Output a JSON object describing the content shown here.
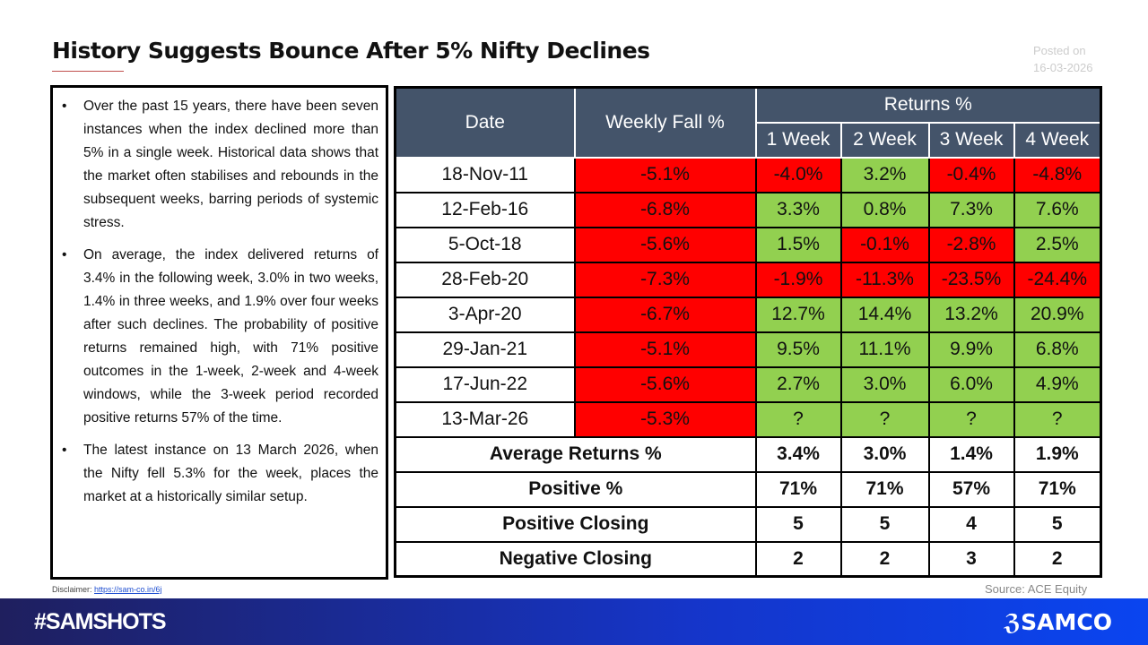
{
  "title": "History Suggests Bounce After 5% Nifty Declines",
  "posted": {
    "label": "Posted on",
    "date": "16-03-2026"
  },
  "bullets": [
    "Over the past 15 years, there have been seven instances when the index declined more than 5% in a single week. Historical data shows that the market often stabilises and rebounds in the subsequent weeks, barring periods of systemic stress.",
    "On average, the index delivered returns of 3.4% in the following week, 3.0% in two weeks, 1.4% in three weeks, and 1.9% over four weeks after such declines. The probability of positive returns remained high, with 71% positive outcomes in the 1-week, 2-week and 4-week windows, while the 3-week period recorded positive returns 57% of the time.",
    "The latest instance on 13 March 2026, when the Nifty fell 5.3% for the week, places the market at a historically similar setup."
  ],
  "table": {
    "headers": {
      "date": "Date",
      "fall": "Weekly Fall %",
      "returns": "Returns %",
      "weeks": [
        "1 Week",
        "2 Week",
        "3 Week",
        "4 Week"
      ]
    },
    "rows": [
      {
        "date": "18-Nov-11",
        "fall": "-5.1%",
        "r": [
          "-4.0%",
          "3.2%",
          "-0.4%",
          "-4.8%"
        ]
      },
      {
        "date": "12-Feb-16",
        "fall": "-6.8%",
        "r": [
          "3.3%",
          "0.8%",
          "7.3%",
          "7.6%"
        ]
      },
      {
        "date": "5-Oct-18",
        "fall": "-5.6%",
        "r": [
          "1.5%",
          "-0.1%",
          "-2.8%",
          "2.5%"
        ]
      },
      {
        "date": "28-Feb-20",
        "fall": "-7.3%",
        "r": [
          "-1.9%",
          "-11.3%",
          "-23.5%",
          "-24.4%"
        ]
      },
      {
        "date": "3-Apr-20",
        "fall": "-6.7%",
        "r": [
          "12.7%",
          "14.4%",
          "13.2%",
          "20.9%"
        ]
      },
      {
        "date": "29-Jan-21",
        "fall": "-5.1%",
        "r": [
          "9.5%",
          "11.1%",
          "9.9%",
          "6.8%"
        ]
      },
      {
        "date": "17-Jun-22",
        "fall": "-5.6%",
        "r": [
          "2.7%",
          "3.0%",
          "6.0%",
          "4.9%"
        ]
      },
      {
        "date": "13-Mar-26",
        "fall": "-5.3%",
        "r": [
          "?",
          "?",
          "?",
          "?"
        ]
      }
    ],
    "summary": [
      {
        "label": "Average Returns %",
        "v": [
          "3.4%",
          "3.0%",
          "1.4%",
          "1.9%"
        ]
      },
      {
        "label": "Positive %",
        "v": [
          "71%",
          "71%",
          "57%",
          "71%"
        ]
      },
      {
        "label": "Positive Closing",
        "v": [
          "5",
          "5",
          "4",
          "5"
        ]
      },
      {
        "label": "Negative Closing",
        "v": [
          "2",
          "2",
          "3",
          "2"
        ]
      }
    ]
  },
  "colors": {
    "header": "#44546a",
    "negative": "#ff0000",
    "positive": "#92d050"
  },
  "disclaimer": {
    "label": "Disclaimer:",
    "link": "https://sam-co.in/6j"
  },
  "source": "Source: ACE Equity",
  "footer": {
    "hashtag": "#SAMSHOTS",
    "logo": "SAMCO"
  }
}
